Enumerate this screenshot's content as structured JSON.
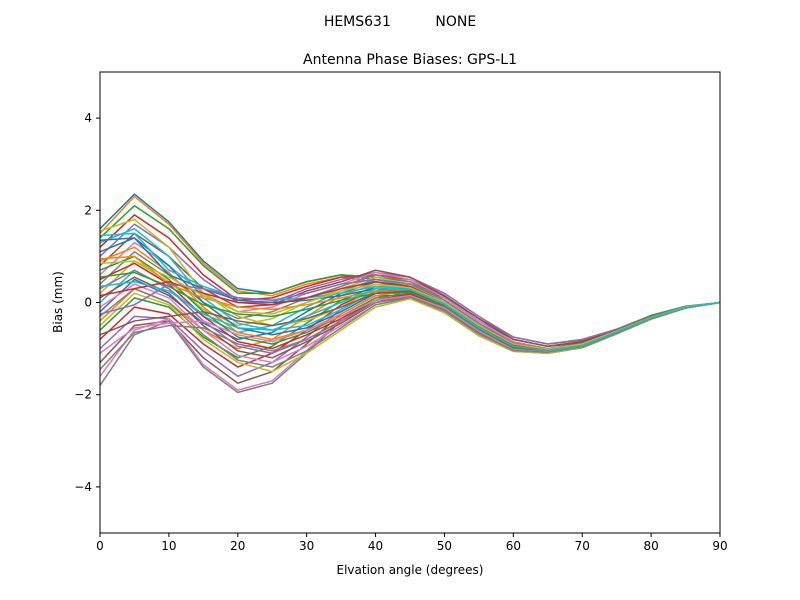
{
  "chart_data": {
    "type": "line",
    "suptitle": "HEMS631          NONE",
    "title": "Antenna Phase Biases: GPS-L1",
    "xlabel": "Elvation angle (degrees)",
    "ylabel": "Bias (mm)",
    "xlim": [
      0,
      90
    ],
    "ylim": [
      -5,
      5
    ],
    "xticks": [
      0,
      10,
      20,
      30,
      40,
      50,
      60,
      70,
      80,
      90
    ],
    "yticks": [
      -4,
      -2,
      0,
      2,
      4
    ],
    "xtick_labels": [
      "0",
      "10",
      "20",
      "30",
      "40",
      "50",
      "60",
      "70",
      "80",
      "90"
    ],
    "ytick_labels": [
      "−4",
      "−2",
      "0",
      "2",
      "4"
    ],
    "grid": false,
    "legend": "none",
    "palette": [
      "#1f77b4",
      "#ff7f0e",
      "#2ca02c",
      "#d62728",
      "#9467bd",
      "#8c564b",
      "#e377c2",
      "#7f7f7f",
      "#bcbd22",
      "#17becf"
    ],
    "x": [
      0,
      5,
      10,
      15,
      20,
      25,
      30,
      35,
      40,
      45,
      50,
      55,
      60,
      65,
      70,
      75,
      80,
      85,
      90
    ],
    "series": [
      {
        "values": [
          1.6,
          2.35,
          1.75,
          0.9,
          0.3,
          0.2,
          0.45,
          0.6,
          0.5,
          0.4,
          0.1,
          -0.4,
          -0.8,
          -0.95,
          -0.85,
          -0.6,
          -0.3,
          -0.1,
          0.0
        ]
      },
      {
        "values": [
          1.5,
          2.3,
          1.7,
          0.85,
          0.25,
          0.15,
          0.4,
          0.55,
          0.45,
          0.35,
          0.05,
          -0.45,
          -0.85,
          -1.0,
          -0.9,
          -0.62,
          -0.32,
          -0.1,
          0.0
        ]
      },
      {
        "values": [
          1.4,
          2.1,
          1.6,
          0.8,
          0.2,
          0.2,
          0.45,
          0.6,
          0.55,
          0.45,
          0.12,
          -0.35,
          -0.75,
          -0.9,
          -0.82,
          -0.58,
          -0.28,
          -0.08,
          0.0
        ]
      },
      {
        "values": [
          1.2,
          1.9,
          1.4,
          0.6,
          0.05,
          0.1,
          0.35,
          0.55,
          0.6,
          0.5,
          0.15,
          -0.35,
          -0.8,
          -0.95,
          -0.85,
          -0.6,
          -0.3,
          -0.1,
          0.0
        ]
      },
      {
        "values": [
          1.0,
          1.7,
          1.2,
          0.5,
          0.0,
          0.0,
          0.3,
          0.5,
          0.65,
          0.55,
          0.2,
          -0.3,
          -0.75,
          -0.9,
          -0.8,
          -0.58,
          -0.3,
          -0.09,
          0.0
        ]
      },
      {
        "values": [
          0.8,
          1.5,
          1.0,
          0.3,
          -0.1,
          -0.05,
          0.25,
          0.45,
          0.7,
          0.55,
          0.15,
          -0.35,
          -0.8,
          -0.95,
          -0.88,
          -0.6,
          -0.3,
          -0.1,
          0.0
        ]
      },
      {
        "values": [
          0.6,
          1.3,
          0.8,
          0.2,
          -0.2,
          -0.1,
          0.2,
          0.4,
          0.65,
          0.5,
          0.1,
          -0.4,
          -0.85,
          -1.0,
          -0.9,
          -0.62,
          -0.32,
          -0.1,
          0.0
        ]
      },
      {
        "values": [
          0.4,
          1.1,
          0.6,
          0.0,
          -0.35,
          -0.2,
          0.1,
          0.35,
          0.6,
          0.45,
          0.05,
          -0.45,
          -0.9,
          -1.05,
          -0.92,
          -0.65,
          -0.33,
          -0.11,
          0.0
        ]
      },
      {
        "values": [
          0.2,
          0.9,
          0.45,
          -0.15,
          -0.5,
          -0.35,
          0.0,
          0.3,
          0.55,
          0.4,
          0.0,
          -0.5,
          -0.95,
          -1.05,
          -0.95,
          -0.66,
          -0.34,
          -0.11,
          0.0
        ]
      },
      {
        "values": [
          0.0,
          0.7,
          0.3,
          -0.3,
          -0.65,
          -0.5,
          -0.1,
          0.25,
          0.5,
          0.35,
          -0.05,
          -0.55,
          -1.0,
          -1.08,
          -0.96,
          -0.67,
          -0.35,
          -0.12,
          0.0
        ]
      },
      {
        "values": [
          -0.2,
          0.5,
          0.15,
          -0.45,
          -0.8,
          -0.65,
          -0.2,
          0.2,
          0.45,
          0.3,
          -0.1,
          -0.6,
          -1.02,
          -1.1,
          -0.98,
          -0.68,
          -0.35,
          -0.12,
          0.0
        ]
      },
      {
        "values": [
          -0.4,
          0.3,
          0.0,
          -0.6,
          -1.0,
          -0.8,
          -0.3,
          0.15,
          0.4,
          0.25,
          -0.12,
          -0.62,
          -1.03,
          -1.1,
          -0.98,
          -0.68,
          -0.36,
          -0.12,
          0.0
        ]
      },
      {
        "values": [
          -0.6,
          0.1,
          -0.1,
          -0.75,
          -1.2,
          -0.95,
          -0.45,
          0.05,
          0.35,
          0.2,
          -0.15,
          -0.65,
          -1.05,
          -1.1,
          -0.98,
          -0.68,
          -0.36,
          -0.12,
          0.0
        ]
      },
      {
        "values": [
          -0.8,
          -0.1,
          -0.25,
          -0.9,
          -1.4,
          -1.1,
          -0.6,
          -0.05,
          0.3,
          0.2,
          -0.15,
          -0.65,
          -1.05,
          -1.08,
          -0.96,
          -0.67,
          -0.35,
          -0.12,
          0.0
        ]
      },
      {
        "values": [
          -1.0,
          -0.3,
          -0.35,
          -1.05,
          -1.6,
          -1.3,
          -0.75,
          -0.15,
          0.25,
          0.15,
          -0.18,
          -0.68,
          -1.05,
          -1.08,
          -0.95,
          -0.67,
          -0.35,
          -0.11,
          0.0
        ]
      },
      {
        "values": [
          -1.3,
          -0.5,
          -0.4,
          -1.2,
          -1.75,
          -1.5,
          -0.9,
          -0.25,
          0.15,
          0.15,
          -0.2,
          -0.7,
          -1.05,
          -1.08,
          -0.95,
          -0.66,
          -0.34,
          -0.11,
          0.0
        ]
      },
      {
        "values": [
          -1.6,
          -0.6,
          -0.35,
          -1.35,
          -1.9,
          -1.7,
          -1.05,
          -0.35,
          0.1,
          0.1,
          -0.2,
          -0.72,
          -1.05,
          -1.07,
          -0.95,
          -0.66,
          -0.34,
          -0.11,
          0.0
        ]
      },
      {
        "values": [
          -1.8,
          -0.7,
          -0.4,
          -1.4,
          -1.95,
          -1.75,
          -1.1,
          -0.4,
          0.05,
          0.1,
          -0.22,
          -0.72,
          -1.05,
          -1.07,
          -0.94,
          -0.66,
          -0.34,
          -0.11,
          0.0
        ]
      },
      {
        "values": [
          1.55,
          1.8,
          1.2,
          0.2,
          -0.3,
          -0.5,
          -0.4,
          -0.1,
          0.3,
          0.4,
          0.05,
          -0.45,
          -0.88,
          -1.0,
          -0.9,
          -0.62,
          -0.32,
          -0.1,
          0.0
        ]
      },
      {
        "values": [
          1.3,
          1.6,
          1.0,
          0.1,
          -0.45,
          -0.6,
          -0.5,
          -0.15,
          0.25,
          0.35,
          0.0,
          -0.5,
          -0.9,
          -1.02,
          -0.92,
          -0.63,
          -0.33,
          -0.1,
          0.0
        ]
      },
      {
        "values": [
          1.1,
          1.4,
          0.8,
          0.0,
          -0.55,
          -0.7,
          -0.55,
          -0.2,
          0.2,
          0.3,
          -0.05,
          -0.55,
          -0.95,
          -1.04,
          -0.93,
          -0.64,
          -0.33,
          -0.11,
          0.0
        ]
      },
      {
        "values": [
          0.9,
          1.2,
          0.65,
          -0.1,
          -0.65,
          -0.8,
          -0.6,
          -0.25,
          0.15,
          0.25,
          -0.08,
          -0.58,
          -0.98,
          -1.05,
          -0.94,
          -0.65,
          -0.34,
          -0.11,
          0.0
        ]
      },
      {
        "values": [
          0.7,
          1.0,
          0.5,
          -0.2,
          -0.75,
          -0.9,
          -0.65,
          -0.3,
          0.1,
          0.2,
          -0.1,
          -0.6,
          -1.0,
          -1.06,
          -0.95,
          -0.66,
          -0.34,
          -0.11,
          0.0
        ]
      },
      {
        "values": [
          0.5,
          0.85,
          0.4,
          -0.3,
          -0.85,
          -1.0,
          -0.7,
          -0.35,
          0.05,
          0.18,
          -0.12,
          -0.62,
          -1.02,
          -1.07,
          -0.95,
          -0.66,
          -0.34,
          -0.11,
          0.0
        ]
      },
      {
        "values": [
          0.3,
          0.7,
          0.3,
          -0.4,
          -0.95,
          -1.1,
          -0.8,
          -0.4,
          0.0,
          0.15,
          -0.15,
          -0.65,
          -1.03,
          -1.08,
          -0.96,
          -0.67,
          -0.35,
          -0.12,
          0.0
        ]
      },
      {
        "values": [
          0.1,
          0.55,
          0.2,
          -0.5,
          -1.05,
          -1.2,
          -0.85,
          -0.45,
          0.0,
          0.12,
          -0.18,
          -0.67,
          -1.04,
          -1.08,
          -0.96,
          -0.67,
          -0.35,
          -0.12,
          0.0
        ]
      },
      {
        "values": [
          -0.1,
          0.4,
          0.1,
          -0.6,
          -1.15,
          -1.3,
          -0.95,
          -0.5,
          -0.05,
          0.1,
          -0.2,
          -0.7,
          -1.05,
          -1.09,
          -0.97,
          -0.67,
          -0.35,
          -0.12,
          0.0
        ]
      },
      {
        "values": [
          -0.3,
          0.3,
          0.0,
          -0.7,
          -1.25,
          -1.4,
          -1.05,
          -0.55,
          -0.05,
          0.1,
          -0.22,
          -0.72,
          -1.06,
          -1.1,
          -0.97,
          -0.68,
          -0.36,
          -0.12,
          0.0
        ]
      },
      {
        "values": [
          -0.5,
          0.2,
          -0.05,
          -0.8,
          -1.3,
          -1.5,
          -1.1,
          -0.6,
          -0.1,
          0.08,
          -0.22,
          -0.72,
          -1.06,
          -1.1,
          -0.97,
          -0.68,
          -0.36,
          -0.12,
          0.0
        ]
      },
      {
        "values": [
          1.45,
          1.5,
          0.7,
          0.35,
          0.1,
          0.05,
          0.1,
          0.2,
          0.35,
          0.3,
          0.0,
          -0.5,
          -0.9,
          -1.0,
          -0.9,
          -0.62,
          -0.32,
          -0.1,
          0.0
        ]
      },
      {
        "values": [
          1.35,
          1.4,
          0.6,
          0.3,
          0.05,
          0.0,
          0.05,
          0.15,
          0.3,
          0.28,
          -0.02,
          -0.52,
          -0.92,
          -1.02,
          -0.91,
          -0.63,
          -0.33,
          -0.1,
          0.0
        ]
      },
      {
        "values": [
          0.95,
          1.0,
          0.4,
          0.1,
          -0.1,
          -0.15,
          -0.05,
          0.1,
          0.25,
          0.25,
          -0.05,
          -0.55,
          -0.95,
          -1.04,
          -0.93,
          -0.64,
          -0.33,
          -0.11,
          0.0
        ]
      },
      {
        "values": [
          0.55,
          0.65,
          0.35,
          -0.05,
          -0.25,
          -0.3,
          -0.15,
          0.05,
          0.2,
          0.22,
          -0.08,
          -0.58,
          -0.97,
          -1.05,
          -0.94,
          -0.65,
          -0.34,
          -0.11,
          0.0
        ]
      },
      {
        "values": [
          0.15,
          0.3,
          0.45,
          0.2,
          0.0,
          -0.05,
          0.1,
          0.3,
          0.45,
          0.35,
          0.0,
          -0.5,
          -0.92,
          -1.02,
          -0.92,
          -0.63,
          -0.33,
          -0.1,
          0.0
        ]
      },
      {
        "values": [
          -0.25,
          -0.05,
          0.4,
          0.3,
          0.1,
          0.05,
          0.2,
          0.4,
          0.5,
          0.4,
          0.05,
          -0.45,
          -0.88,
          -1.0,
          -0.9,
          -0.62,
          -0.32,
          -0.1,
          0.0
        ]
      },
      {
        "values": [
          -0.7,
          -0.4,
          -0.3,
          -0.2,
          -0.4,
          -0.5,
          -0.35,
          -0.1,
          0.2,
          0.25,
          -0.05,
          -0.55,
          -0.96,
          -1.05,
          -0.94,
          -0.65,
          -0.34,
          -0.11,
          0.0
        ]
      },
      {
        "values": [
          -1.1,
          -0.55,
          -0.45,
          -0.4,
          -0.7,
          -0.85,
          -0.6,
          -0.3,
          0.05,
          0.15,
          -0.12,
          -0.62,
          -1.02,
          -1.07,
          -0.95,
          -0.66,
          -0.34,
          -0.11,
          0.0
        ]
      },
      {
        "values": [
          -1.45,
          -0.65,
          -0.5,
          -0.55,
          -0.9,
          -1.05,
          -0.8,
          -0.4,
          0.0,
          0.12,
          -0.18,
          -0.68,
          -1.04,
          -1.08,
          -0.96,
          -0.67,
          -0.35,
          -0.12,
          0.0
        ]
      },
      {
        "values": [
          0.85,
          0.9,
          0.55,
          0.15,
          -0.2,
          -0.25,
          0.0,
          0.25,
          0.4,
          0.32,
          0.0,
          -0.5,
          -0.9,
          -1.01,
          -0.9,
          -0.62,
          -0.32,
          -0.1,
          0.0
        ]
      },
      {
        "values": [
          0.35,
          0.45,
          0.25,
          -0.25,
          -0.55,
          -0.6,
          -0.3,
          0.0,
          0.3,
          0.28,
          -0.04,
          -0.55,
          -0.95,
          -1.04,
          -0.93,
          -0.64,
          -0.33,
          -0.11,
          0.0
        ]
      }
    ]
  }
}
